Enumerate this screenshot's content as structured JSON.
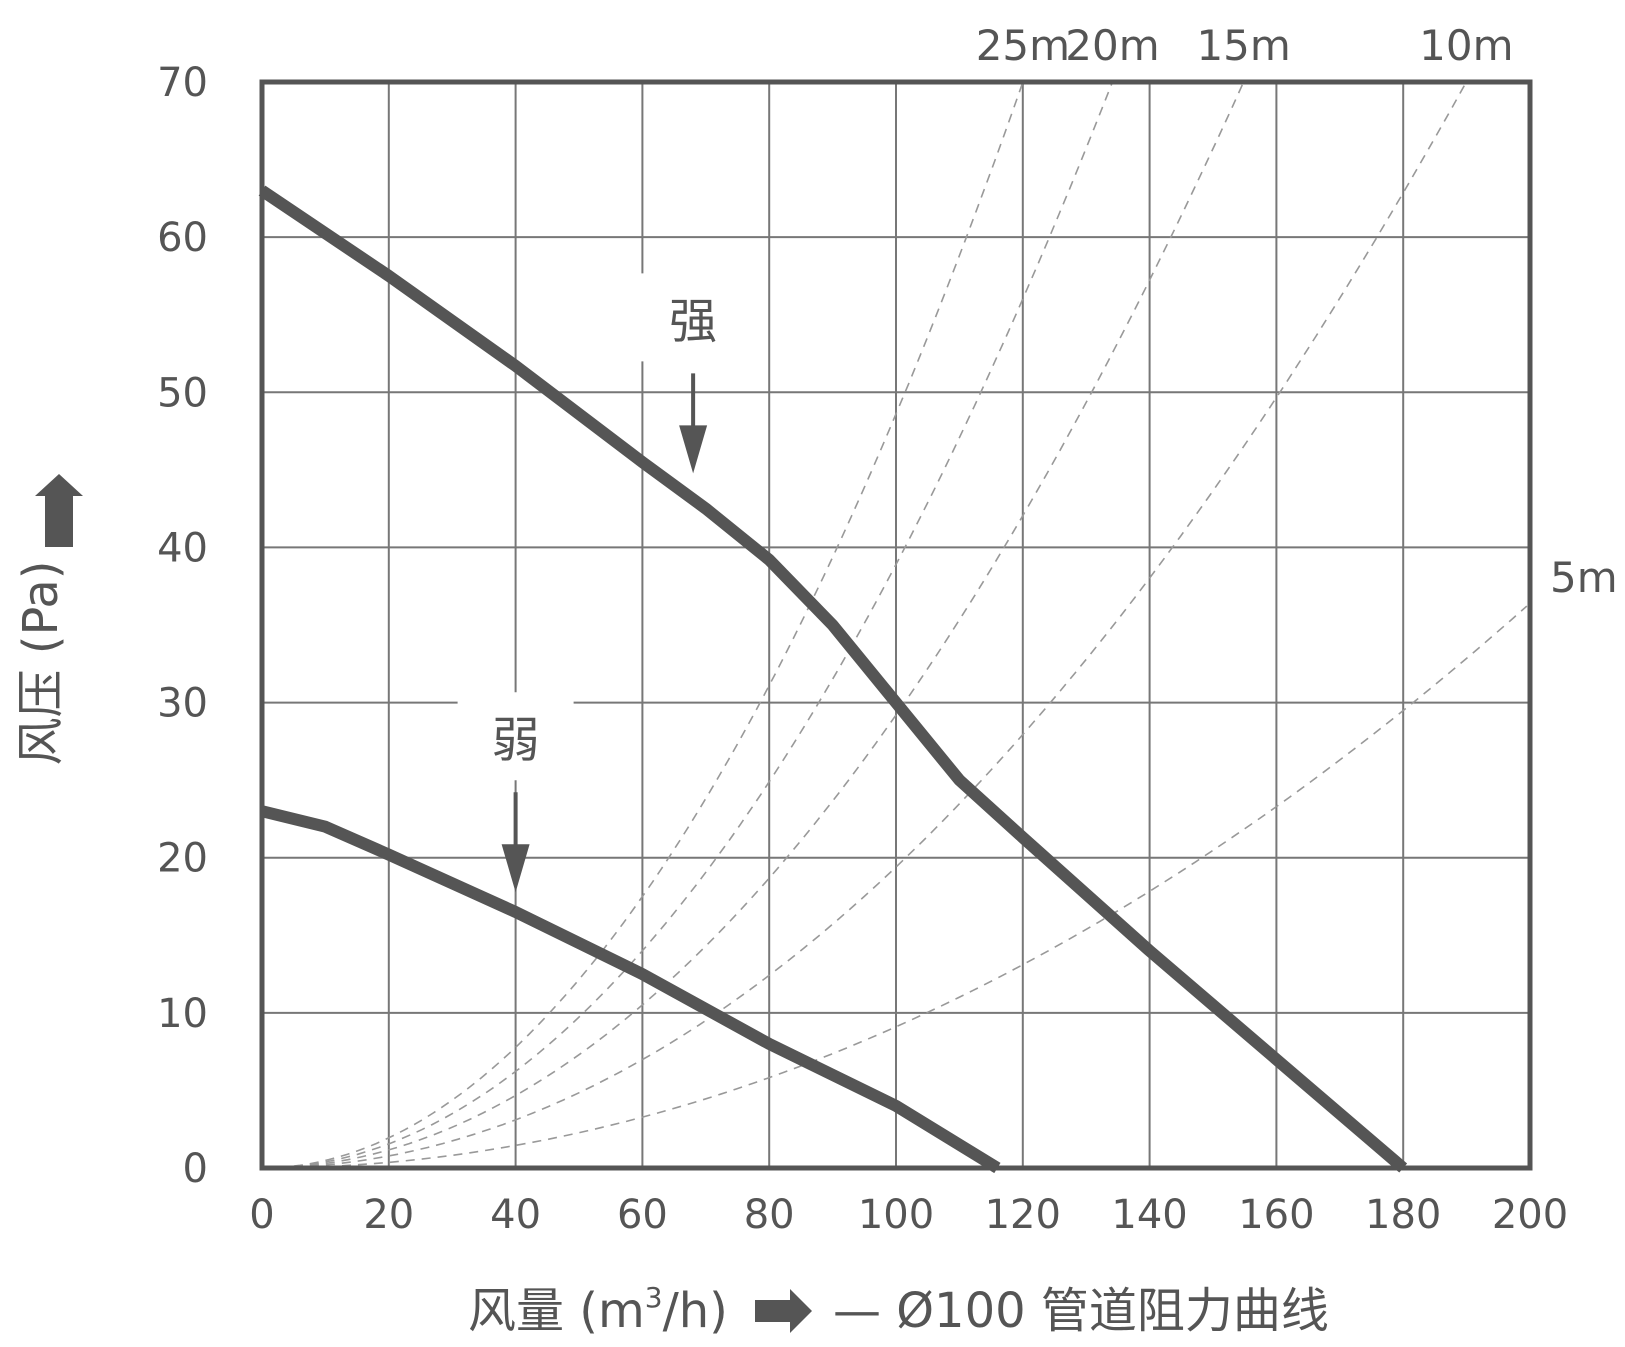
{
  "chart_data": {
    "type": "line",
    "xlabel_text": "风量 (m",
    "xlabel_unit_sup": "3",
    "xlabel_unit_tail": "/h)",
    "legend_text": "— Ø100 管道阻力曲线",
    "ylabel": "风压 (Pa)",
    "xlim": [
      0,
      200
    ],
    "ylim": [
      0,
      70
    ],
    "x_ticks": [
      0,
      20,
      40,
      60,
      80,
      100,
      120,
      140,
      160,
      180,
      200
    ],
    "y_ticks": [
      0,
      10,
      20,
      30,
      40,
      50,
      60,
      70
    ],
    "grid": true,
    "series": [
      {
        "name": "强",
        "points": [
          [
            0,
            63
          ],
          [
            20,
            57.5
          ],
          [
            40,
            51.7
          ],
          [
            60,
            45.5
          ],
          [
            70,
            42.5
          ],
          [
            80,
            39.2
          ],
          [
            90,
            35
          ],
          [
            100,
            30
          ],
          [
            110,
            25
          ],
          [
            120,
            21.3
          ],
          [
            140,
            14
          ],
          [
            160,
            7
          ],
          [
            180,
            0
          ]
        ]
      },
      {
        "name": "弱",
        "points": [
          [
            0,
            23
          ],
          [
            10,
            22
          ],
          [
            20,
            20.2
          ],
          [
            40,
            16.5
          ],
          [
            60,
            12.5
          ],
          [
            80,
            8
          ],
          [
            100,
            4
          ],
          [
            116,
            0
          ]
        ]
      }
    ],
    "resistance_curves": [
      {
        "label": "25m",
        "k": 0.00486
      },
      {
        "label": "20m",
        "k": 0.00389
      },
      {
        "label": "15m",
        "k": 0.00292
      },
      {
        "label": "10m",
        "k": 0.00194
      },
      {
        "label": "5m",
        "k": 0.00091
      }
    ],
    "annotations": [
      {
        "text": "强",
        "x": 68,
        "y": 44
      },
      {
        "text": "弱",
        "x": 40,
        "y": 17
      }
    ]
  }
}
